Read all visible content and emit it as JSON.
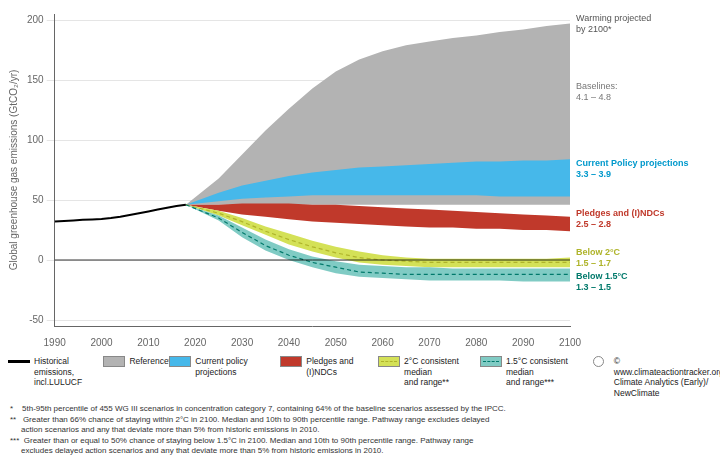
{
  "chart_data": {
    "type": "area",
    "ylabel": "Global greenhouse gas emissions (GtCO₂/yr)",
    "xlim": [
      1990,
      2100
    ],
    "ylim": [
      -55,
      205
    ],
    "xticks": [
      1990,
      2000,
      2010,
      2020,
      2030,
      2040,
      2050,
      2060,
      2070,
      2080,
      2090,
      2100
    ],
    "yticks": [
      -50,
      0,
      50,
      100,
      150,
      200
    ],
    "grid": "y",
    "legend": "bottom",
    "series": [
      {
        "name": "Historical emissions,\nincl.LULUCF",
        "type": "line",
        "color": "#000000",
        "x": [
          1990,
          1992,
          1994,
          1996,
          1998,
          2000,
          2002,
          2004,
          2006,
          2008,
          2010,
          2012,
          2014,
          2016,
          2018
        ],
        "values": [
          32.0,
          32.5,
          33.0,
          33.5,
          33.8,
          34.2,
          35.0,
          36.0,
          37.5,
          39.0,
          40.5,
          42.0,
          43.5,
          45.0,
          46.0
        ]
      },
      {
        "name": "Reference*",
        "type": "band",
        "color": "#b3b3b3",
        "x": [
          2018,
          2025,
          2030,
          2035,
          2040,
          2045,
          2050,
          2055,
          2060,
          2065,
          2070,
          2075,
          2080,
          2085,
          2090,
          2095,
          2100
        ],
        "lower": [
          46,
          46,
          46,
          46,
          46,
          46,
          46,
          46,
          46,
          46,
          46,
          46,
          46,
          46,
          46,
          46,
          46
        ],
        "upper": [
          46,
          68,
          88,
          108,
          126,
          143,
          157,
          167,
          174,
          179,
          182,
          185,
          187,
          190,
          192,
          195,
          197
        ]
      },
      {
        "name": "Current policy projections",
        "type": "band",
        "color": "#46b8ea",
        "x": [
          2018,
          2025,
          2030,
          2035,
          2040,
          2045,
          2050,
          2055,
          2060,
          2065,
          2070,
          2075,
          2080,
          2085,
          2090,
          2095,
          2100
        ],
        "lower": [
          46,
          49,
          51,
          52,
          53,
          54,
          54,
          54,
          54,
          54,
          54,
          54,
          54,
          53,
          53,
          53,
          53
        ],
        "upper": [
          46,
          56,
          62,
          66,
          70,
          73,
          75,
          77,
          78,
          79,
          80,
          81,
          82,
          82,
          83,
          83,
          84
        ]
      },
      {
        "name": "Pledges and (I)NDCs",
        "type": "band",
        "color": "#c0392b",
        "x": [
          2018,
          2025,
          2030,
          2035,
          2040,
          2045,
          2050,
          2055,
          2060,
          2065,
          2070,
          2075,
          2080,
          2085,
          2090,
          2095,
          2100
        ],
        "lower": [
          46,
          41,
          38,
          36,
          34,
          32,
          31,
          30,
          29,
          28,
          27,
          27,
          26,
          26,
          25,
          25,
          24
        ],
        "upper": [
          46,
          46,
          47,
          47,
          47,
          46,
          46,
          45,
          44,
          43,
          42,
          41,
          40,
          39,
          38,
          37,
          36
        ]
      },
      {
        "name": "2°C consistent median\nand range**",
        "type": "band",
        "color": "#d4e157",
        "x": [
          2018,
          2025,
          2030,
          2035,
          2040,
          2045,
          2050,
          2055,
          2060,
          2065,
          2070,
          2075,
          2080,
          2085,
          2090,
          2095,
          2100
        ],
        "lower": [
          46,
          37,
          29,
          21,
          13,
          7,
          2,
          -2,
          -4,
          -5,
          -6,
          -6,
          -6,
          -6,
          -6,
          -6,
          -6
        ],
        "upper": [
          46,
          41,
          35,
          28,
          22,
          16,
          11,
          7,
          4,
          2,
          1,
          1,
          1,
          1,
          1,
          1,
          2
        ],
        "median": {
          "color": "#afb42b",
          "line_style": "dashed",
          "values": [
            46,
            39,
            32,
            24,
            17,
            11,
            6,
            2,
            0,
            -1,
            -2,
            -2,
            -2,
            -2,
            -2,
            -2,
            -2
          ]
        }
      },
      {
        "name": "1.5°C consistent median\nand range***",
        "type": "band",
        "color": "#80cbc4",
        "x": [
          2018,
          2025,
          2030,
          2035,
          2040,
          2045,
          2050,
          2055,
          2060,
          2065,
          2070,
          2075,
          2080,
          2085,
          2090,
          2095,
          2100
        ],
        "lower": [
          46,
          33,
          19,
          8,
          0,
          -6,
          -11,
          -14,
          -15,
          -16,
          -17,
          -17,
          -17,
          -17,
          -18,
          -18,
          -18
        ],
        "upper": [
          46,
          37,
          27,
          17,
          9,
          3,
          -1,
          -4,
          -5,
          -6,
          -6,
          -7,
          -7,
          -7,
          -7,
          -7,
          -7
        ],
        "median": {
          "color": "#00796b",
          "line_style": "dashed",
          "values": [
            46,
            35,
            23,
            12,
            4,
            -2,
            -6,
            -10,
            -11,
            -12,
            -12,
            -12,
            -12,
            -12,
            -12,
            -12,
            -12
          ]
        }
      }
    ],
    "hlines": [
      0
    ],
    "annotations": [
      {
        "text": "Warming projected\nby 2100*",
        "y": 197,
        "color": "#555555",
        "bold": false
      },
      {
        "text": "Baselines:\n4.1 – 4.8",
        "y": 140,
        "color": "#777777",
        "bold": false
      },
      {
        "text": "Current Policy projections\n3.3 – 3.9",
        "y": 76,
        "color": "#0099cc",
        "bold": true
      },
      {
        "text": "Pledges and (I)NDCs\n2.5 – 2.8",
        "y": 34,
        "color": "#c0392b",
        "bold": true
      },
      {
        "text": "Below 2°C\n1.5 – 1.7",
        "y": 2,
        "color": "#afb42b",
        "bold": true
      },
      {
        "text": "Below 1.5°C\n1.3 – 1.5",
        "y": -12,
        "color": "#00796b",
        "bold": true
      }
    ],
    "source": "© www.climateactiontracker.org/\nClimate Analytics (Early)/\nNewClimate",
    "footnotes": [
      "*    5th-95th percentile of 455 WG III scenarios in concentration category 7, containing 64% of the baseline scenarios assessed by the IPCC.",
      "**   Greater than 66% chance of staying within 2°C in 2100. Median and 10th to 90th percentile range. Pathway range excludes delayed",
      "     action scenarios and any that deviate more than 5% from historic emissions in 2010.",
      "***  Greater than or equal to 50% chance of staying below 1.5°C in 2100. Median and 10th to 90th percentile range. Pathway range",
      "     excludes delayed action scenarios and any that deviate more than 5% from historic emissions in 2010."
    ]
  }
}
